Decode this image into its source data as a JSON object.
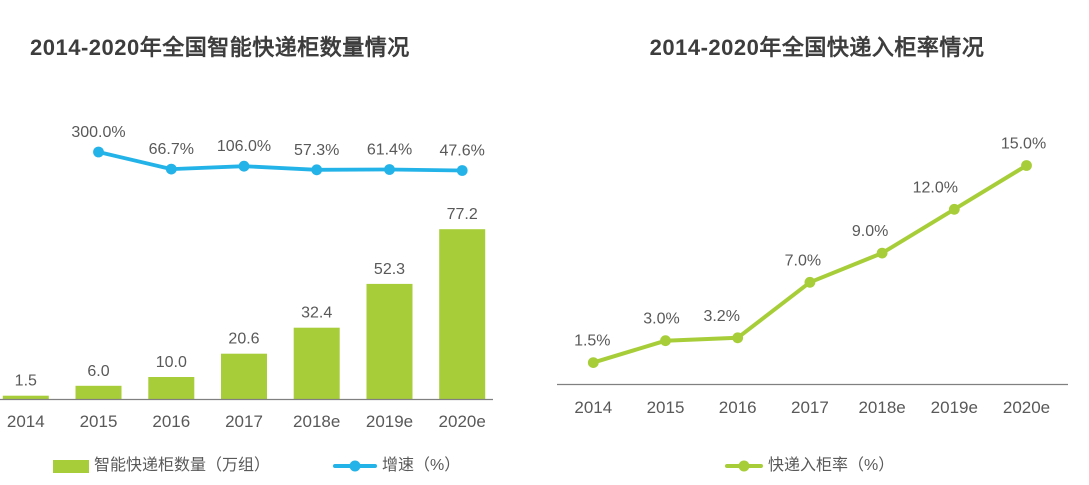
{
  "colors": {
    "green": "#a7ce39",
    "blue": "#24b3e8",
    "title": "#3d3d3d",
    "label": "#595959",
    "axis": "#808080"
  },
  "chart_data": [
    {
      "type": "bar",
      "title": "2014-2020年全国智能快递柜数量情况",
      "categories": [
        "2014",
        "2015",
        "2016",
        "2017",
        "2018e",
        "2019e",
        "2020e"
      ],
      "series": [
        {
          "name": "智能快递柜数量（万组）",
          "type": "bar",
          "color": "#a7ce39",
          "values": [
            1.5,
            6.0,
            10.0,
            20.6,
            32.4,
            52.3,
            77.2
          ],
          "value_labels": [
            "1.5",
            "6.0",
            "10.0",
            "20.6",
            "32.4",
            "52.3",
            "77.2"
          ]
        },
        {
          "name": "增速（%）",
          "type": "line",
          "color": "#24b3e8",
          "values": [
            null,
            300.0,
            66.7,
            106.0,
            57.3,
            61.4,
            47.6
          ],
          "value_labels": [
            null,
            "300.0%",
            "66.7%",
            "106.0%",
            "57.3%",
            "61.4%",
            "47.6%"
          ]
        }
      ],
      "ylim": [
        0,
        90
      ],
      "grid": false,
      "y_axis_visible": false,
      "legend_position": "bottom"
    },
    {
      "type": "line",
      "title": "2014-2020年全国快递入柜率情况",
      "categories": [
        "2014",
        "2015",
        "2016",
        "2017",
        "2018e",
        "2019e",
        "2020e"
      ],
      "series": [
        {
          "name": "快递入柜率（%）",
          "type": "line",
          "color": "#a7ce39",
          "values": [
            1.5,
            3.0,
            3.2,
            7.0,
            9.0,
            12.0,
            15.0
          ],
          "value_labels": [
            "1.5%",
            "3.0%",
            "3.2%",
            "7.0%",
            "9.0%",
            "12.0%",
            "15.0%"
          ]
        }
      ],
      "ylim": [
        0,
        16
      ],
      "grid": false,
      "y_axis_visible": false,
      "legend_position": "bottom"
    }
  ]
}
